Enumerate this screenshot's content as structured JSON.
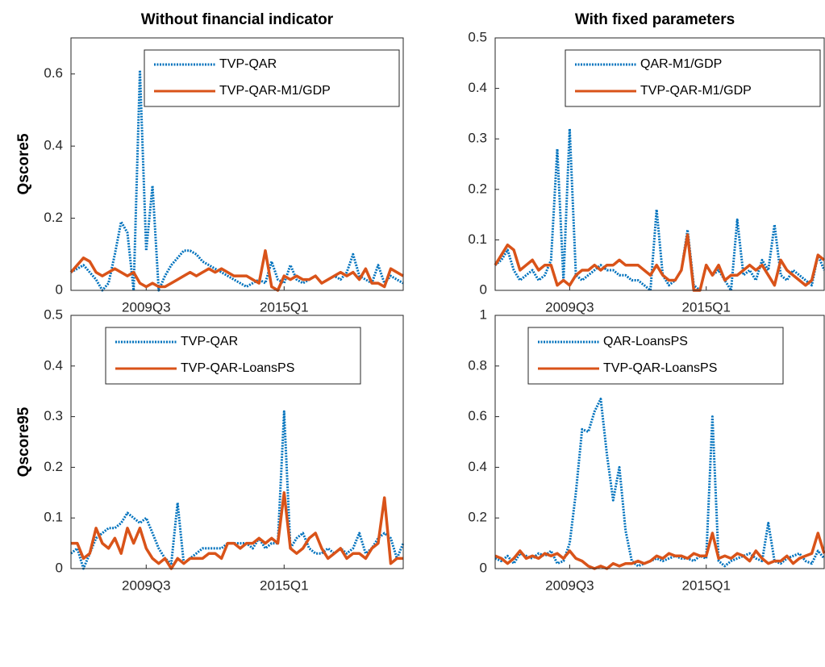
{
  "chart_data": [
    {
      "type": "line",
      "title": "Without financial indicator",
      "ylabel": "Qscore5",
      "categories": [
        null,
        null,
        null,
        null,
        null,
        null,
        null,
        null,
        null,
        null,
        null,
        null,
        "2009Q3",
        null,
        null,
        null,
        null,
        null,
        null,
        null,
        null,
        null,
        null,
        null,
        null,
        null,
        null,
        null,
        null,
        null,
        null,
        null,
        null,
        null,
        "2015Q1",
        null,
        null,
        null,
        null,
        null,
        null,
        null,
        null,
        null,
        null,
        null,
        null,
        null,
        null,
        null,
        null,
        null,
        null,
        null
      ],
      "ylim": [
        0,
        0.7
      ],
      "yticks": [
        0,
        0.2,
        0.4,
        0.6
      ],
      "legend": "upper right",
      "series": [
        {
          "name": "TVP-QAR",
          "color": "#0072BD",
          "linestyle": "dotted",
          "values": [
            0.05,
            0.06,
            0.07,
            0.05,
            0.03,
            0.0,
            0.02,
            0.1,
            0.19,
            0.16,
            0.0,
            0.61,
            0.11,
            0.29,
            0.0,
            0.04,
            0.07,
            0.09,
            0.11,
            0.11,
            0.1,
            0.08,
            0.07,
            0.06,
            0.05,
            0.04,
            0.03,
            0.02,
            0.01,
            0.02,
            0.03,
            0.02,
            0.08,
            0.03,
            0.02,
            0.07,
            0.03,
            0.02,
            0.03,
            0.04,
            0.02,
            0.03,
            0.04,
            0.03,
            0.05,
            0.1,
            0.04,
            0.03,
            0.02,
            0.07,
            0.02,
            0.04,
            0.03,
            0.02
          ]
        },
        {
          "name": "TVP-QAR-M1/GDP",
          "color": "#D95319",
          "linestyle": "solid",
          "values": [
            0.05,
            0.07,
            0.09,
            0.08,
            0.05,
            0.04,
            0.05,
            0.06,
            0.05,
            0.04,
            0.05,
            0.02,
            0.01,
            0.02,
            0.01,
            0.01,
            0.02,
            0.03,
            0.04,
            0.05,
            0.04,
            0.05,
            0.06,
            0.05,
            0.06,
            0.05,
            0.04,
            0.04,
            0.04,
            0.03,
            0.02,
            0.11,
            0.01,
            0.0,
            0.04,
            0.03,
            0.04,
            0.03,
            0.03,
            0.04,
            0.02,
            0.03,
            0.04,
            0.05,
            0.04,
            0.05,
            0.03,
            0.06,
            0.02,
            0.02,
            0.01,
            0.06,
            0.05,
            0.04
          ]
        }
      ]
    },
    {
      "type": "line",
      "title": "With fixed parameters",
      "categories": [
        null,
        null,
        null,
        null,
        null,
        null,
        null,
        null,
        null,
        null,
        null,
        null,
        "2009Q3",
        null,
        null,
        null,
        null,
        null,
        null,
        null,
        null,
        null,
        null,
        null,
        null,
        null,
        null,
        null,
        null,
        null,
        null,
        null,
        null,
        null,
        "2015Q1",
        null,
        null,
        null,
        null,
        null,
        null,
        null,
        null,
        null,
        null,
        null,
        null,
        null,
        null,
        null,
        null,
        null,
        null,
        null
      ],
      "ylim": [
        0,
        0.5
      ],
      "yticks": [
        0,
        0.1,
        0.2,
        0.3,
        0.4,
        0.5
      ],
      "legend": "upper right",
      "series": [
        {
          "name": "QAR-M1/GDP",
          "color": "#0072BD",
          "linestyle": "dotted",
          "values": [
            0.05,
            0.06,
            0.08,
            0.04,
            0.02,
            0.03,
            0.04,
            0.02,
            0.03,
            0.06,
            0.28,
            0.02,
            0.32,
            0.03,
            0.02,
            0.03,
            0.04,
            0.05,
            0.04,
            0.04,
            0.03,
            0.03,
            0.02,
            0.02,
            0.01,
            0.0,
            0.16,
            0.03,
            0.01,
            0.02,
            0.04,
            0.12,
            0.01,
            0.0,
            0.05,
            0.03,
            0.04,
            0.02,
            0.0,
            0.14,
            0.03,
            0.04,
            0.02,
            0.06,
            0.04,
            0.13,
            0.03,
            0.02,
            0.04,
            0.03,
            0.02,
            0.01,
            0.07,
            0.04
          ]
        },
        {
          "name": "TVP-QAR-M1/GDP",
          "color": "#D95319",
          "linestyle": "solid",
          "values": [
            0.05,
            0.07,
            0.09,
            0.08,
            0.04,
            0.05,
            0.06,
            0.04,
            0.05,
            0.05,
            0.01,
            0.02,
            0.01,
            0.03,
            0.04,
            0.04,
            0.05,
            0.04,
            0.05,
            0.05,
            0.06,
            0.05,
            0.05,
            0.05,
            0.04,
            0.03,
            0.05,
            0.03,
            0.02,
            0.02,
            0.04,
            0.11,
            0.0,
            0.0,
            0.05,
            0.03,
            0.05,
            0.02,
            0.03,
            0.03,
            0.04,
            0.05,
            0.04,
            0.05,
            0.03,
            0.01,
            0.06,
            0.04,
            0.03,
            0.02,
            0.01,
            0.02,
            0.07,
            0.06
          ]
        }
      ]
    },
    {
      "type": "line",
      "ylabel": "Qscore95",
      "categories": [
        null,
        null,
        null,
        null,
        null,
        null,
        null,
        null,
        null,
        null,
        null,
        null,
        "2009Q3",
        null,
        null,
        null,
        null,
        null,
        null,
        null,
        null,
        null,
        null,
        null,
        null,
        null,
        null,
        null,
        null,
        null,
        null,
        null,
        null,
        null,
        "2015Q1",
        null,
        null,
        null,
        null,
        null,
        null,
        null,
        null,
        null,
        null,
        null,
        null,
        null,
        null,
        null,
        null,
        null,
        null,
        null
      ],
      "ylim": [
        0,
        0.5
      ],
      "yticks": [
        0,
        0.1,
        0.2,
        0.3,
        0.4,
        0.5
      ],
      "legend": "upper center",
      "series": [
        {
          "name": "TVP-QAR",
          "color": "#0072BD",
          "linestyle": "dotted",
          "values": [
            0.03,
            0.04,
            0.0,
            0.03,
            0.06,
            0.07,
            0.08,
            0.08,
            0.09,
            0.11,
            0.1,
            0.09,
            0.1,
            0.07,
            0.04,
            0.02,
            0.01,
            0.13,
            0.01,
            0.02,
            0.03,
            0.04,
            0.04,
            0.04,
            0.04,
            0.05,
            0.05,
            0.05,
            0.05,
            0.04,
            0.06,
            0.04,
            0.05,
            0.05,
            0.31,
            0.04,
            0.06,
            0.07,
            0.04,
            0.03,
            0.03,
            0.04,
            0.03,
            0.04,
            0.03,
            0.04,
            0.07,
            0.03,
            0.04,
            0.06,
            0.07,
            0.06,
            0.02,
            0.05
          ]
        },
        {
          "name": "TVP-QAR-LoansPS",
          "color": "#D95319",
          "linestyle": "solid",
          "values": [
            0.05,
            0.05,
            0.02,
            0.03,
            0.08,
            0.05,
            0.04,
            0.06,
            0.03,
            0.08,
            0.05,
            0.08,
            0.04,
            0.02,
            0.01,
            0.02,
            0.0,
            0.02,
            0.01,
            0.02,
            0.02,
            0.02,
            0.03,
            0.03,
            0.02,
            0.05,
            0.05,
            0.04,
            0.05,
            0.05,
            0.06,
            0.05,
            0.06,
            0.05,
            0.15,
            0.04,
            0.03,
            0.04,
            0.06,
            0.07,
            0.04,
            0.02,
            0.03,
            0.04,
            0.02,
            0.03,
            0.03,
            0.02,
            0.04,
            0.05,
            0.14,
            0.01,
            0.02,
            0.02
          ]
        }
      ]
    },
    {
      "type": "line",
      "categories": [
        null,
        null,
        null,
        null,
        null,
        null,
        null,
        null,
        null,
        null,
        null,
        null,
        "2009Q3",
        null,
        null,
        null,
        null,
        null,
        null,
        null,
        null,
        null,
        null,
        null,
        null,
        null,
        null,
        null,
        null,
        null,
        null,
        null,
        null,
        null,
        "2015Q1",
        null,
        null,
        null,
        null,
        null,
        null,
        null,
        null,
        null,
        null,
        null,
        null,
        null,
        null,
        null,
        null,
        null,
        null,
        null
      ],
      "ylim": [
        0,
        1
      ],
      "yticks": [
        0,
        0.2,
        0.4,
        0.6,
        0.8,
        1
      ],
      "legend": "upper center",
      "series": [
        {
          "name": "QAR-LoansPS",
          "color": "#0072BD",
          "linestyle": "dotted",
          "values": [
            0.04,
            0.03,
            0.05,
            0.02,
            0.06,
            0.05,
            0.04,
            0.06,
            0.05,
            0.07,
            0.02,
            0.03,
            0.1,
            0.3,
            0.55,
            0.54,
            0.62,
            0.67,
            0.45,
            0.27,
            0.4,
            0.15,
            0.03,
            0.01,
            0.02,
            0.03,
            0.04,
            0.03,
            0.04,
            0.05,
            0.04,
            0.04,
            0.03,
            0.05,
            0.04,
            0.6,
            0.03,
            0.01,
            0.03,
            0.04,
            0.05,
            0.06,
            0.04,
            0.03,
            0.18,
            0.03,
            0.02,
            0.04,
            0.05,
            0.06,
            0.03,
            0.02,
            0.07,
            0.04
          ]
        },
        {
          "name": "TVP-QAR-LoansPS",
          "color": "#D95319",
          "linestyle": "solid",
          "values": [
            0.05,
            0.04,
            0.02,
            0.04,
            0.07,
            0.04,
            0.05,
            0.04,
            0.06,
            0.05,
            0.06,
            0.04,
            0.07,
            0.04,
            0.03,
            0.01,
            0.0,
            0.01,
            0.0,
            0.02,
            0.01,
            0.02,
            0.02,
            0.03,
            0.02,
            0.03,
            0.05,
            0.04,
            0.06,
            0.05,
            0.05,
            0.04,
            0.06,
            0.05,
            0.05,
            0.14,
            0.04,
            0.05,
            0.04,
            0.06,
            0.05,
            0.03,
            0.07,
            0.04,
            0.02,
            0.03,
            0.03,
            0.05,
            0.02,
            0.04,
            0.05,
            0.06,
            0.14,
            0.06
          ]
        }
      ]
    }
  ]
}
